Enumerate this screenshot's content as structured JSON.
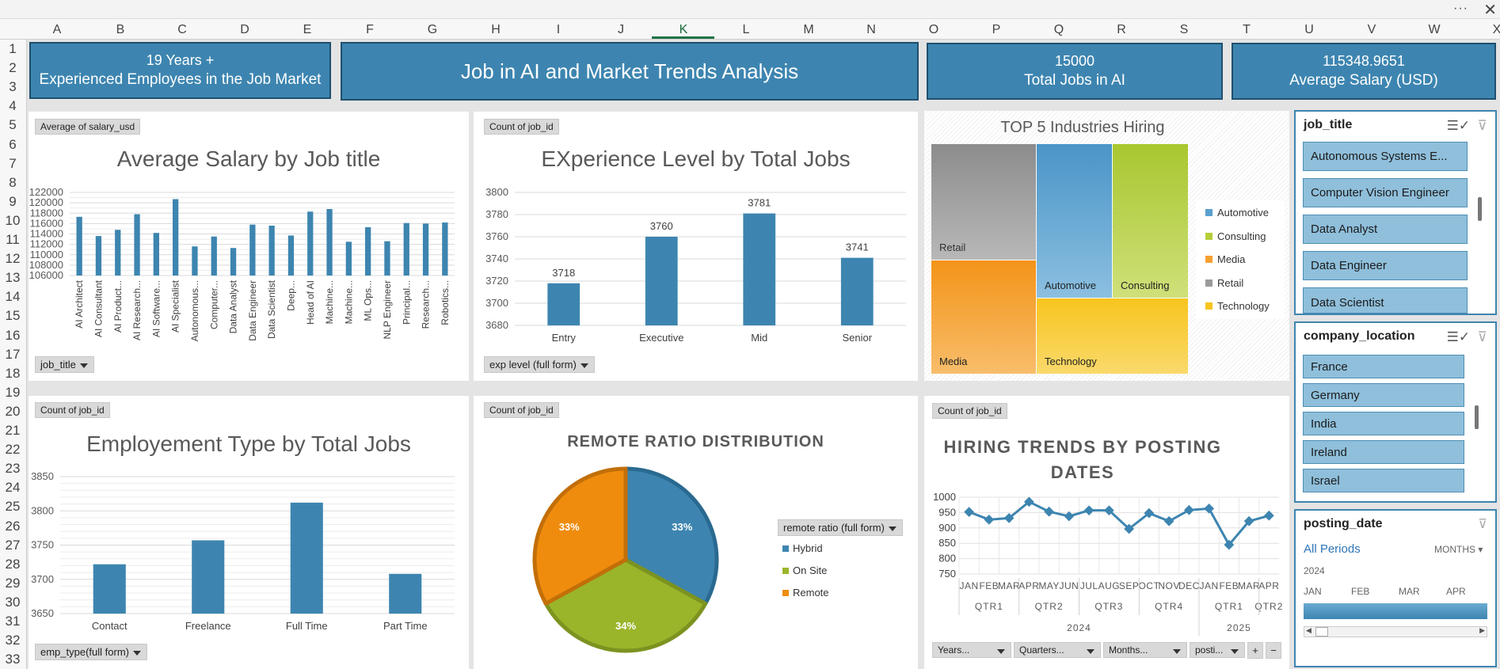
{
  "columns": [
    "A",
    "B",
    "C",
    "D",
    "E",
    "F",
    "G",
    "H",
    "I",
    "J",
    "K",
    "L",
    "M",
    "N",
    "O",
    "P",
    "Q",
    "R",
    "S",
    "T",
    "U",
    "V",
    "W",
    "X"
  ],
  "active_column": "K",
  "rows": [
    "1",
    "2",
    "3",
    "4",
    "5",
    "6",
    "7",
    "8",
    "9",
    "10",
    "11",
    "12",
    "13",
    "14",
    "15",
    "16",
    "17",
    "18",
    "19",
    "20",
    "21",
    "22",
    "23",
    "24",
    "25",
    "26",
    "27",
    "28",
    "29",
    "30",
    "31",
    "32",
    "33"
  ],
  "window": {
    "more_glyph": "···",
    "close_glyph": "✕"
  },
  "kpis": {
    "experience": {
      "line1": "19 Years +",
      "line2": "Experienced Employees in the Job Market"
    },
    "title": "Job in AI and Market Trends Analysis",
    "total_jobs": {
      "value": "15000",
      "label": "Total Jobs in AI"
    },
    "avg_salary": {
      "value": "115348.9651",
      "label": "Average Salary  (USD)"
    }
  },
  "colors": {
    "accent": "#3d85b0",
    "kpi_border": "#1f4f6e",
    "bar": "#3d85b0",
    "green": "#9ab52a",
    "orange": "#ef8c0e"
  },
  "salary_chart": {
    "field_button": "Average of salary_usd",
    "axis_button": "job_title",
    "chart_data": {
      "type": "bar",
      "title": "Average Salary by Job title",
      "categories": [
        "AI Architect",
        "AI Consultant",
        "AI Product...",
        "AI Research...",
        "AI Software...",
        "AI Specialist",
        "Autonomous...",
        "Computer...",
        "Data Analyst",
        "Data Engineer",
        "Data Scientist",
        "Deep...",
        "Head of AI",
        "Machine...",
        "Machine...",
        "ML Ops...",
        "NLP Engineer",
        "Principal...",
        "Research...",
        "Robotics..."
      ],
      "values": [
        117300,
        113600,
        114800,
        117800,
        114200,
        120700,
        111600,
        113500,
        111300,
        115800,
        115600,
        113700,
        118300,
        118800,
        112500,
        115300,
        112600,
        116100,
        116000,
        116200
      ],
      "ylim": [
        106000,
        122000
      ],
      "yticks": [
        "122000",
        "120000",
        "118000",
        "116000",
        "114000",
        "112000",
        "110000",
        "108000",
        "106000"
      ]
    }
  },
  "experience_chart": {
    "field_button": "Count of job_id",
    "axis_button": "exp level (full form)",
    "chart_data": {
      "type": "bar",
      "title": "EXperience Level by Total Jobs",
      "categories": [
        "Entry",
        "Executive",
        "Mid",
        "Senior"
      ],
      "values": [
        3718,
        3760,
        3781,
        3741
      ],
      "ylim": [
        3680,
        3800
      ],
      "yticks": [
        "3800",
        "3780",
        "3760",
        "3740",
        "3720",
        "3700",
        "3680"
      ]
    }
  },
  "industries_chart": {
    "chart_data": {
      "type": "treemap",
      "title": "TOP 5 Industries Hiring",
      "items": [
        {
          "name": "Retail",
          "color": "#9a9a9a"
        },
        {
          "name": "Automotive",
          "color": "#5aa0cf"
        },
        {
          "name": "Consulting",
          "color": "#b5cf3c"
        },
        {
          "name": "Media",
          "color": "#f6a030"
        },
        {
          "name": "Technology",
          "color": "#f7c51e"
        }
      ],
      "legend": [
        "Automotive",
        "Consulting",
        "Media",
        "Retail",
        "Technology"
      ]
    }
  },
  "employment_chart": {
    "field_button": "Count of job_id",
    "axis_button": "emp_type(full form)",
    "chart_data": {
      "type": "bar",
      "title": "Employement Type by Total Jobs",
      "categories": [
        "Contact",
        "Freelance",
        "Full Time",
        "Part Time"
      ],
      "values": [
        3722,
        3757,
        3812,
        3708
      ],
      "ylim": [
        3650,
        3850
      ],
      "yticks": [
        "3850",
        "3800",
        "3750",
        "3700",
        "3650"
      ]
    }
  },
  "remote_chart": {
    "field_button": "Count of job_id",
    "legend_button": "remote ratio (full form)",
    "chart_data": {
      "type": "pie",
      "title": "REMOTE RATIO DISTRIBUTION",
      "categories": [
        "Hybrid",
        "On Site",
        "Remote"
      ],
      "values": [
        33,
        34,
        33
      ],
      "labels": [
        "33%",
        "34%",
        "33%"
      ]
    }
  },
  "trend_chart": {
    "field_button": "Count of job_id",
    "buttons": [
      "Years...",
      "Quarters...",
      "Months...",
      "posti..."
    ],
    "plus": "+",
    "minus": "−",
    "chart_data": {
      "type": "line",
      "title_line1": "HIRING TRENDS BY POSTING",
      "title_line2": "DATES",
      "x": [
        "JAN",
        "FEB",
        "MAR",
        "APR",
        "MAY",
        "JUN",
        "JUL",
        "AUG",
        "SEP",
        "OCT",
        "NOV",
        "DEC",
        "JAN",
        "FEB",
        "MAR",
        "APR"
      ],
      "values": [
        952,
        927,
        932,
        985,
        953,
        938,
        957,
        957,
        897,
        948,
        922,
        958,
        963,
        845,
        922,
        940
      ],
      "ylim": [
        750,
        1000
      ],
      "yticks": [
        "1000",
        "950",
        "900",
        "850",
        "800",
        "750"
      ],
      "quarters": [
        "QTR1",
        "QTR2",
        "QTR3",
        "QTR4",
        "QTR1",
        "QTR2"
      ],
      "years": [
        "2024",
        "2025"
      ]
    }
  },
  "job_title_slicer": {
    "title": "job_title",
    "items": [
      "Autonomous Systems E...",
      "Computer Vision Engineer",
      "Data Analyst",
      "Data Engineer",
      "Data Scientist"
    ]
  },
  "location_slicer": {
    "title": "company_location",
    "items": [
      "France",
      "Germany",
      "India",
      "Ireland",
      "Israel"
    ]
  },
  "date_slicer": {
    "title": "posting_date",
    "period": "All Periods",
    "unit": "MONTHS",
    "year": "2024",
    "months": [
      "JAN",
      "FEB",
      "MAR",
      "APR"
    ]
  }
}
